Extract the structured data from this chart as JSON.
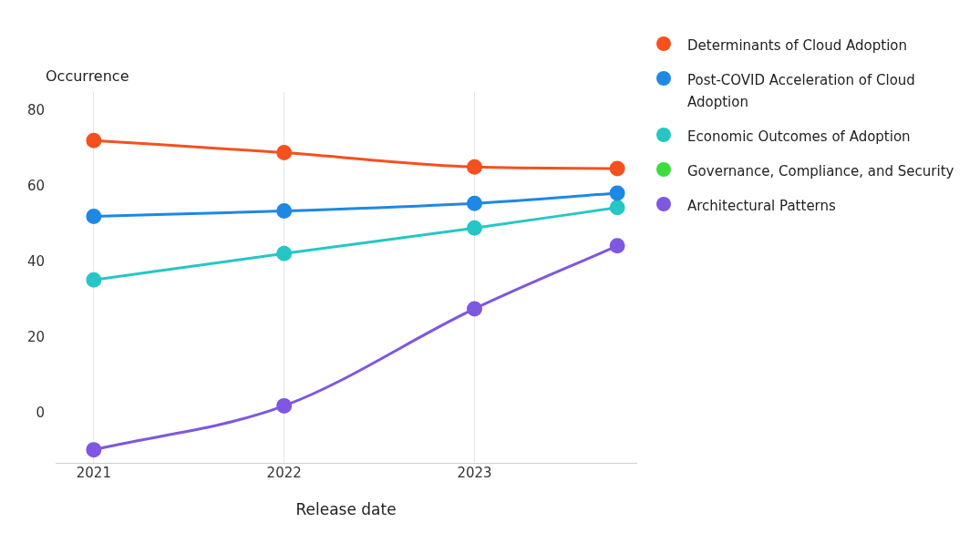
{
  "chart_data": {
    "type": "line",
    "xlabel": "Release date",
    "ylabel": "Occurrence",
    "x": [
      2021,
      2022,
      2023,
      2023.75
    ],
    "xlim": [
      2020.8,
      2023.85
    ],
    "xticks": [
      2021,
      2022,
      2023
    ],
    "ylim": [
      -13,
      85
    ],
    "yticks": [
      0,
      20,
      40,
      60,
      80
    ],
    "grid": "x",
    "legend": "right",
    "marker": "circle",
    "line_style": "solid",
    "series": [
      {
        "name": "Determinants of Cloud Adoption",
        "color": "#f4511e",
        "values": [
          72.2,
          69,
          65.2,
          64.8
        ]
      },
      {
        "name": "Post-COVID Acceleration of Cloud Adoption",
        "color": "#1e88e5",
        "values": [
          52.2,
          53.6,
          55.6,
          58.3
        ]
      },
      {
        "name": "Economic Outcomes of Adoption",
        "color": "#26c6c6",
        "values": [
          35.4,
          42.4,
          49.1,
          54.5
        ]
      },
      {
        "name": "Governance, Compliance, and Security",
        "color": "#3ddc3d",
        "values": [
          null,
          null,
          null,
          null
        ]
      },
      {
        "name": "Architectural Patterns",
        "color": "#7e57e2",
        "values": [
          -9.4,
          2.2,
          27.8,
          44.4
        ]
      }
    ]
  }
}
